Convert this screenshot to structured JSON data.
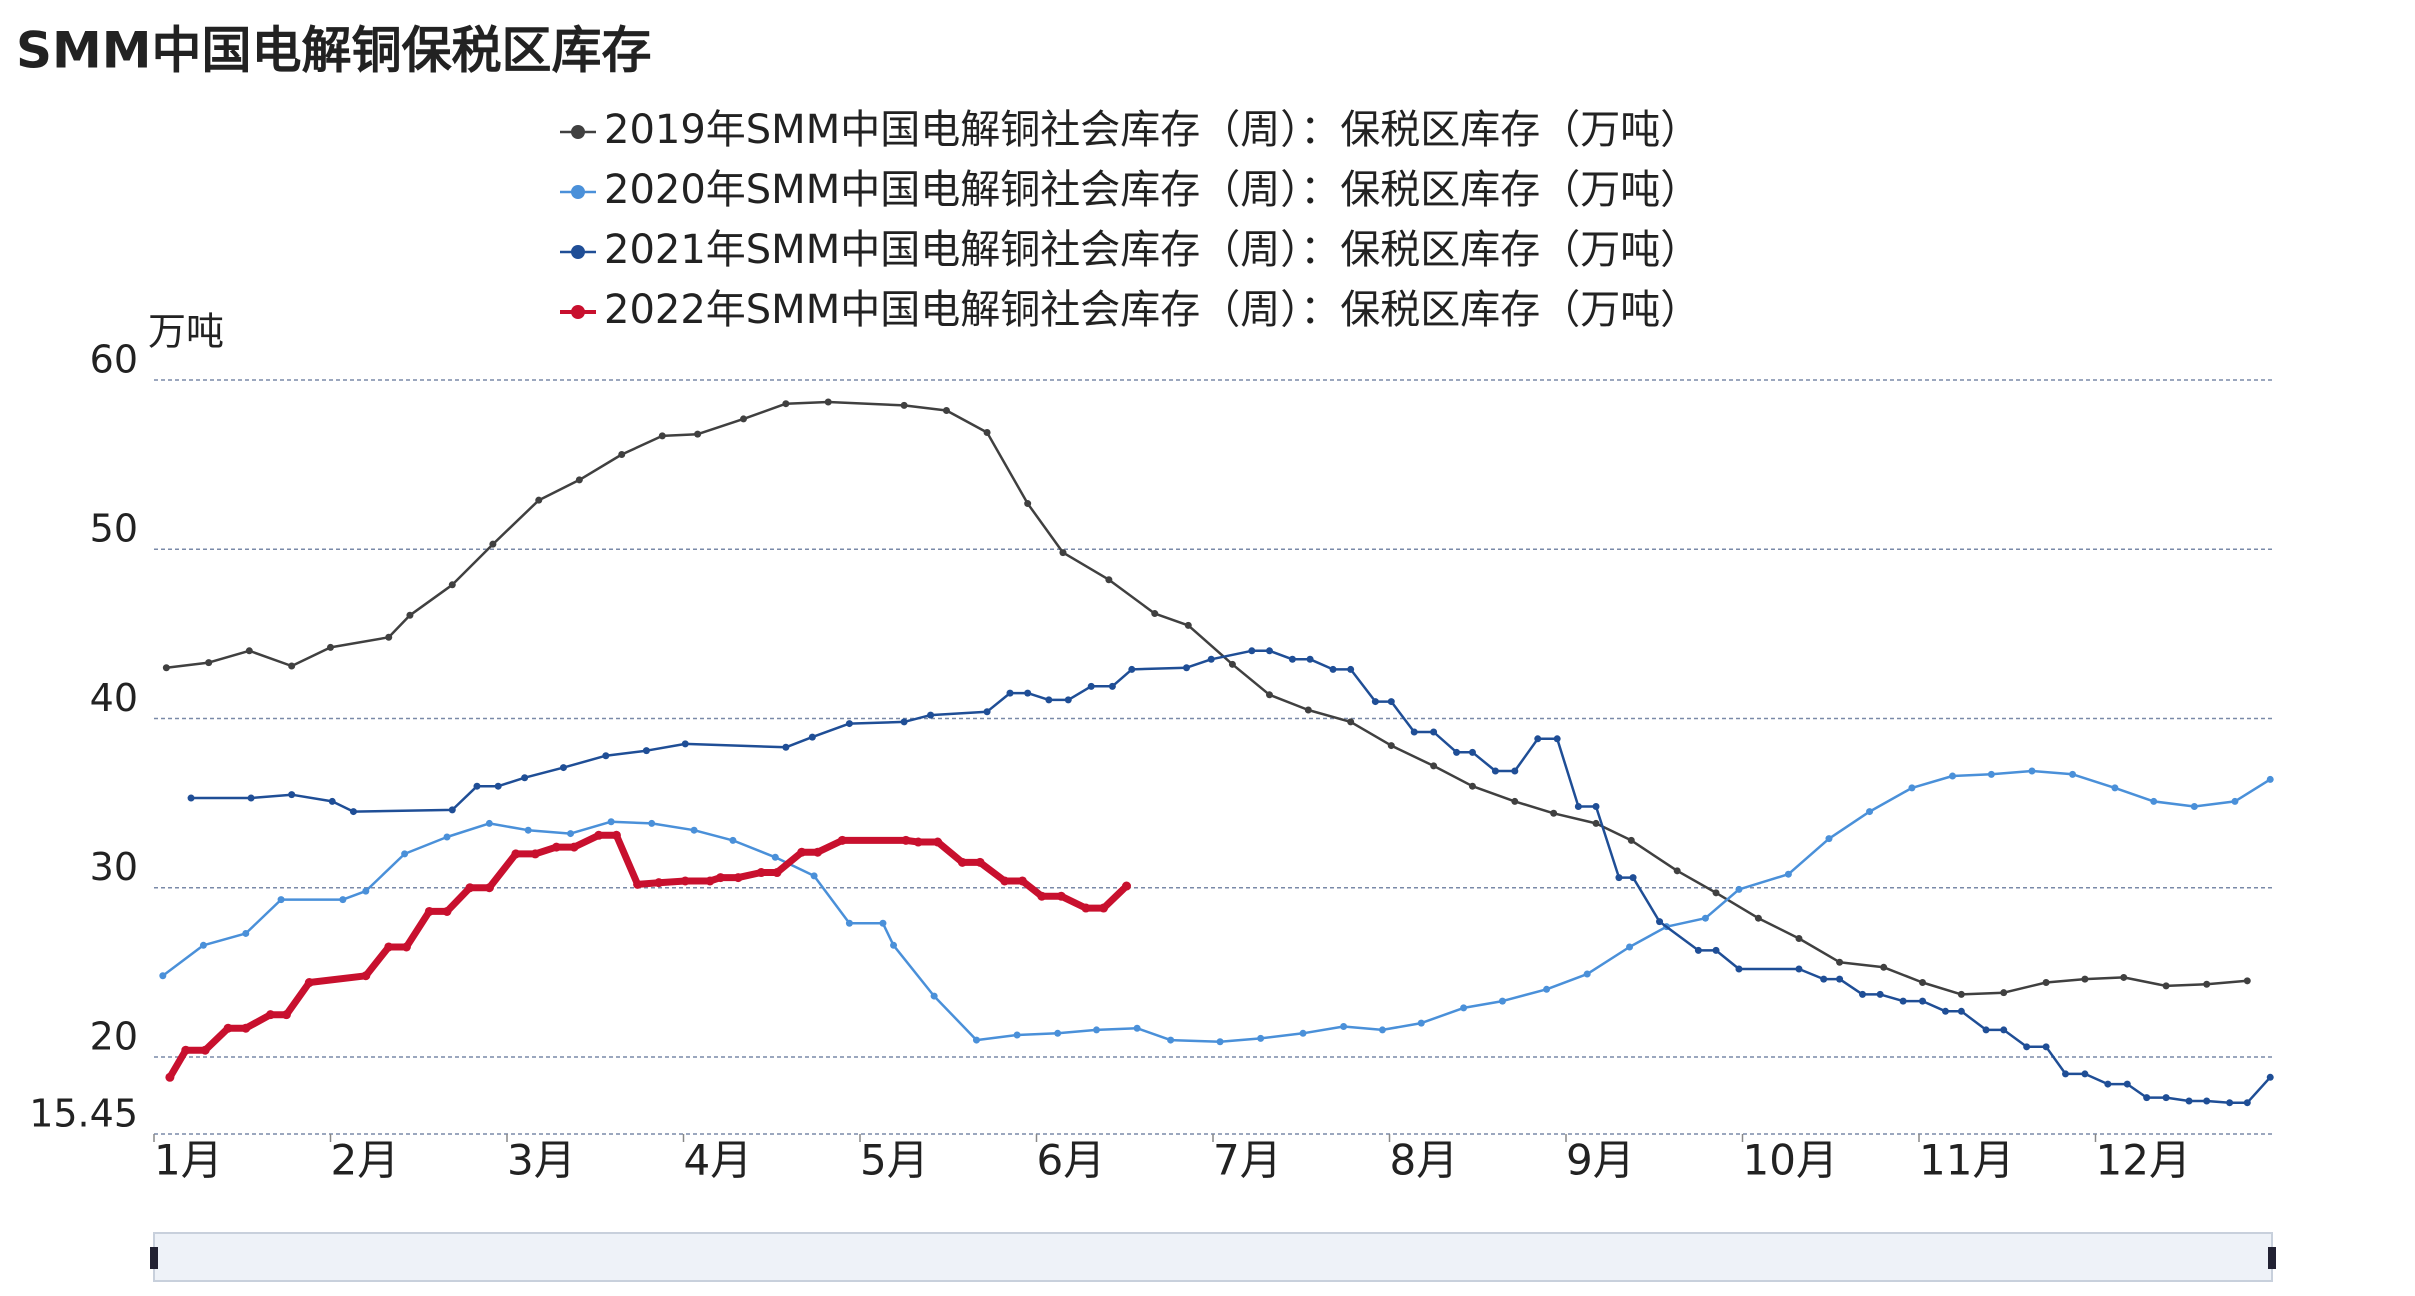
{
  "chart_data": {
    "type": "line",
    "title": "SMM中国电解铜保税区库存",
    "y_label": "万吨",
    "xlim": [
      1,
      13
    ],
    "xticks": [
      {
        "value": 1,
        "label": "1月"
      },
      {
        "value": 2,
        "label": "2月"
      },
      {
        "value": 3,
        "label": "3月"
      },
      {
        "value": 4,
        "label": "4月"
      },
      {
        "value": 5,
        "label": "5月"
      },
      {
        "value": 6,
        "label": "6月"
      },
      {
        "value": 7,
        "label": "7月"
      },
      {
        "value": 8,
        "label": "8月"
      },
      {
        "value": 9,
        "label": "9月"
      },
      {
        "value": 10,
        "label": "10月"
      },
      {
        "value": 11,
        "label": "11月"
      },
      {
        "value": 12,
        "label": "12月"
      }
    ],
    "ylim": [
      15.45,
      60
    ],
    "yticks": [
      15.45,
      20,
      30,
      40,
      50,
      60
    ],
    "grid": true,
    "series": [
      {
        "name": "2019年SMM中国电解铜社会库存（周）：保税区库存（万吨）",
        "color": "#404040",
        "width": 2.5,
        "x": [
          1.07,
          1.31,
          1.54,
          1.78,
          2.0,
          2.33,
          2.45,
          2.69,
          2.92,
          3.18,
          3.41,
          3.65,
          3.88,
          4.08,
          4.34,
          4.58,
          4.82,
          5.25,
          5.49,
          5.72,
          5.95,
          6.15,
          6.41,
          6.67,
          6.86,
          7.11,
          7.32,
          7.54,
          7.78,
          8.01,
          8.25,
          8.47,
          8.71,
          8.93,
          9.17,
          9.37,
          9.63,
          9.85,
          10.09,
          10.32,
          10.55,
          10.8,
          11.02,
          11.24,
          11.48,
          11.72,
          11.94,
          12.16,
          12.4,
          12.63,
          12.86
        ],
        "values": [
          43.0,
          43.3,
          44.0,
          43.1,
          44.2,
          44.8,
          46.1,
          47.9,
          50.3,
          52.9,
          54.1,
          55.6,
          56.7,
          56.8,
          57.7,
          58.6,
          58.7,
          58.5,
          58.2,
          56.9,
          52.7,
          49.8,
          48.2,
          46.2,
          45.5,
          43.2,
          41.4,
          40.5,
          39.8,
          38.4,
          37.2,
          36.0,
          35.1,
          34.4,
          33.8,
          32.8,
          31.0,
          29.7,
          28.2,
          27.0,
          25.6,
          25.3,
          24.4,
          23.7,
          23.8,
          24.4,
          24.6,
          24.7,
          24.2,
          24.3,
          24.5
        ]
      },
      {
        "name": "2020年SMM中国电解铜社会库存（周）：保税区库存（万吨）",
        "color": "#4a90d9",
        "width": 2.5,
        "x": [
          1.05,
          1.28,
          1.52,
          1.72,
          2.07,
          2.2,
          2.42,
          2.66,
          2.9,
          3.12,
          3.36,
          3.59,
          3.82,
          4.06,
          4.28,
          4.52,
          4.74,
          4.94,
          5.13,
          5.19,
          5.42,
          5.66,
          5.89,
          6.12,
          6.34,
          6.57,
          6.76,
          7.04,
          7.27,
          7.51,
          7.74,
          7.96,
          8.18,
          8.42,
          8.64,
          8.89,
          9.12,
          9.36,
          9.57,
          9.79,
          9.98,
          10.26,
          10.49,
          10.72,
          10.96,
          11.19,
          11.41,
          11.64,
          11.87,
          12.11,
          12.33,
          12.56,
          12.79,
          12.99
        ],
        "values": [
          24.8,
          26.6,
          27.3,
          29.3,
          29.3,
          29.8,
          32.0,
          33.0,
          33.8,
          33.4,
          33.2,
          33.9,
          33.8,
          33.4,
          32.8,
          31.8,
          30.7,
          27.9,
          27.9,
          26.6,
          23.6,
          21.0,
          21.3,
          21.4,
          21.6,
          21.7,
          21.0,
          20.9,
          21.1,
          21.4,
          21.8,
          21.6,
          22.0,
          22.9,
          23.3,
          24.0,
          24.9,
          26.5,
          27.7,
          28.2,
          29.9,
          30.8,
          32.9,
          34.5,
          35.9,
          36.6,
          36.7,
          36.9,
          36.7,
          35.9,
          35.1,
          34.8,
          35.1,
          36.4
        ]
      },
      {
        "name": "2021年SMM中国电解铜社会库存（周）：保税区库存（万吨）",
        "color": "#1f4e96",
        "width": 2.5,
        "x": [
          1.21,
          1.55,
          1.78,
          2.01,
          2.13,
          2.69,
          2.83,
          2.95,
          3.1,
          3.32,
          3.56,
          3.79,
          4.01,
          4.58,
          4.73,
          4.94,
          5.25,
          5.4,
          5.72,
          5.85,
          5.95,
          6.07,
          6.18,
          6.31,
          6.43,
          6.54,
          6.85,
          6.99,
          7.22,
          7.32,
          7.45,
          7.55,
          7.68,
          7.78,
          7.92,
          8.01,
          8.14,
          8.25,
          8.38,
          8.47,
          8.6,
          8.71,
          8.84,
          8.95,
          9.07,
          9.17,
          9.3,
          9.38,
          9.53,
          9.75,
          9.85,
          9.98,
          10.32,
          10.46,
          10.55,
          10.68,
          10.78,
          10.91,
          11.02,
          11.15,
          11.24,
          11.38,
          11.48,
          11.61,
          11.72,
          11.83,
          11.94,
          12.07,
          12.18,
          12.29,
          12.4,
          12.53,
          12.63,
          12.76,
          12.86,
          12.99
        ],
        "values": [
          35.3,
          35.3,
          35.5,
          35.1,
          34.5,
          34.6,
          36.0,
          36.0,
          36.5,
          37.1,
          37.8,
          38.1,
          38.5,
          38.3,
          38.9,
          39.7,
          39.8,
          40.2,
          40.4,
          41.5,
          41.5,
          41.1,
          41.1,
          41.9,
          41.9,
          42.9,
          43.0,
          43.5,
          44.0,
          44.0,
          43.5,
          43.5,
          42.9,
          42.9,
          41.0,
          41.0,
          39.2,
          39.2,
          38.0,
          38.0,
          36.9,
          36.9,
          38.8,
          38.8,
          34.8,
          34.8,
          30.6,
          30.6,
          28.0,
          26.3,
          26.3,
          25.2,
          25.2,
          24.6,
          24.6,
          23.7,
          23.7,
          23.3,
          23.3,
          22.7,
          22.7,
          21.6,
          21.6,
          20.6,
          20.6,
          19.0,
          19.0,
          18.4,
          18.4,
          17.6,
          17.6,
          17.4,
          17.4,
          17.3,
          17.3,
          18.8
        ]
      },
      {
        "name": "2022年SMM中国电解铜社会库存（周）：保税区库存（万吨）",
        "color": "#c8102e",
        "width": 7,
        "x": [
          1.09,
          1.18,
          1.29,
          1.42,
          1.52,
          1.66,
          1.75,
          1.88,
          2.2,
          2.33,
          2.43,
          2.56,
          2.66,
          2.79,
          2.9,
          3.05,
          3.16,
          3.28,
          3.38,
          3.52,
          3.62,
          3.74,
          3.86,
          4.01,
          4.15,
          4.21,
          4.31,
          4.44,
          4.53,
          4.67,
          4.76,
          4.9,
          5.26,
          5.33,
          5.44,
          5.58,
          5.68,
          5.82,
          5.92,
          6.03,
          6.14,
          6.28,
          6.38,
          6.51
        ],
        "values": [
          18.8,
          20.4,
          20.4,
          21.7,
          21.7,
          22.5,
          22.5,
          24.4,
          24.8,
          26.5,
          26.5,
          28.6,
          28.6,
          30.0,
          30.0,
          32.0,
          32.0,
          32.4,
          32.4,
          33.1,
          33.1,
          30.2,
          30.3,
          30.4,
          30.4,
          30.6,
          30.6,
          30.9,
          30.9,
          32.1,
          32.1,
          32.8,
          32.8,
          32.7,
          32.7,
          31.5,
          31.5,
          30.4,
          30.4,
          29.5,
          29.5,
          28.8,
          28.8,
          30.1
        ]
      }
    ]
  }
}
